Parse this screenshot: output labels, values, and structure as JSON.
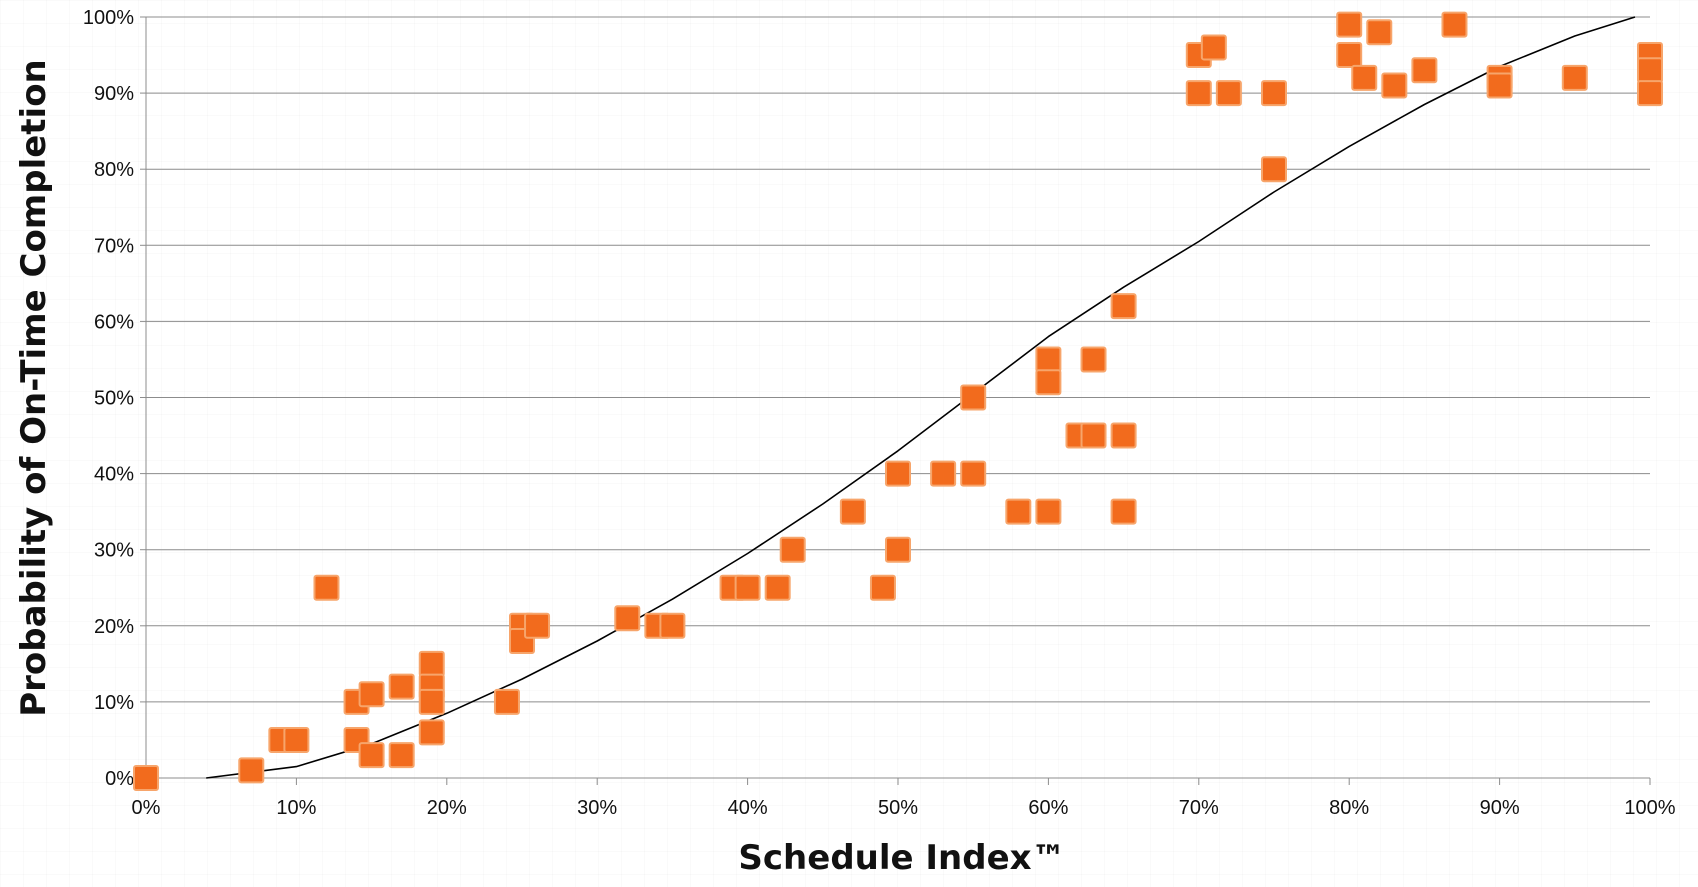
{
  "chart_data": {
    "type": "scatter",
    "xlabel": "Schedule Index™",
    "ylabel": "Probability of On-Time Completion",
    "xlim": [
      0,
      1
    ],
    "ylim": [
      0,
      1
    ],
    "x_ticks": [
      "0%",
      "10%",
      "20%",
      "30%",
      "40%",
      "50%",
      "60%",
      "70%",
      "80%",
      "90%",
      "100%"
    ],
    "y_ticks": [
      "0%",
      "10%",
      "20%",
      "30%",
      "40%",
      "50%",
      "60%",
      "70%",
      "80%",
      "90%",
      "100%"
    ],
    "grid": "horizontal",
    "legend": "none",
    "marker": "square",
    "colors": {
      "marker_fill": "#F26B1D",
      "marker_border": "#F7A56B",
      "trend_line": "#000000",
      "grid": "#8C8C8C"
    },
    "series": [
      {
        "points": [
          [
            0.0,
            0.0
          ],
          [
            0.07,
            0.01
          ],
          [
            0.09,
            0.05
          ],
          [
            0.1,
            0.05
          ],
          [
            0.12,
            0.25
          ],
          [
            0.14,
            0.1
          ],
          [
            0.14,
            0.05
          ],
          [
            0.15,
            0.11
          ],
          [
            0.15,
            0.03
          ],
          [
            0.17,
            0.12
          ],
          [
            0.17,
            0.03
          ],
          [
            0.19,
            0.15
          ],
          [
            0.19,
            0.12
          ],
          [
            0.19,
            0.1
          ],
          [
            0.19,
            0.06
          ],
          [
            0.24,
            0.1
          ],
          [
            0.25,
            0.2
          ],
          [
            0.25,
            0.18
          ],
          [
            0.26,
            0.2
          ],
          [
            0.32,
            0.21
          ],
          [
            0.34,
            0.2
          ],
          [
            0.35,
            0.2
          ],
          [
            0.39,
            0.25
          ],
          [
            0.4,
            0.25
          ],
          [
            0.42,
            0.25
          ],
          [
            0.43,
            0.3
          ],
          [
            0.47,
            0.35
          ],
          [
            0.49,
            0.25
          ],
          [
            0.5,
            0.4
          ],
          [
            0.5,
            0.3
          ],
          [
            0.53,
            0.4
          ],
          [
            0.55,
            0.5
          ],
          [
            0.55,
            0.4
          ],
          [
            0.58,
            0.35
          ],
          [
            0.6,
            0.55
          ],
          [
            0.6,
            0.52
          ],
          [
            0.6,
            0.35
          ],
          [
            0.62,
            0.45
          ],
          [
            0.63,
            0.55
          ],
          [
            0.63,
            0.45
          ],
          [
            0.65,
            0.62
          ],
          [
            0.65,
            0.45
          ],
          [
            0.65,
            0.35
          ],
          [
            0.7,
            0.95
          ],
          [
            0.7,
            0.9
          ],
          [
            0.71,
            0.96
          ],
          [
            0.72,
            0.9
          ],
          [
            0.75,
            0.9
          ],
          [
            0.75,
            0.8
          ],
          [
            0.8,
            0.99
          ],
          [
            0.8,
            0.95
          ],
          [
            0.81,
            0.92
          ],
          [
            0.82,
            0.98
          ],
          [
            0.83,
            0.91
          ],
          [
            0.85,
            0.93
          ],
          [
            0.87,
            0.99
          ],
          [
            0.9,
            0.92
          ],
          [
            0.9,
            0.91
          ],
          [
            0.95,
            0.92
          ],
          [
            1.0,
            0.95
          ],
          [
            1.0,
            0.93
          ],
          [
            1.0,
            0.9
          ]
        ]
      }
    ],
    "trend_line": {
      "type": "s-curve",
      "x": [
        0.04,
        0.1,
        0.15,
        0.2,
        0.25,
        0.3,
        0.35,
        0.4,
        0.45,
        0.5,
        0.55,
        0.6,
        0.65,
        0.7,
        0.75,
        0.8,
        0.85,
        0.9,
        0.95,
        0.99
      ],
      "y": [
        0.0,
        0.015,
        0.045,
        0.085,
        0.13,
        0.18,
        0.235,
        0.295,
        0.36,
        0.43,
        0.505,
        0.58,
        0.645,
        0.705,
        0.77,
        0.83,
        0.885,
        0.935,
        0.975,
        1.0
      ]
    }
  }
}
